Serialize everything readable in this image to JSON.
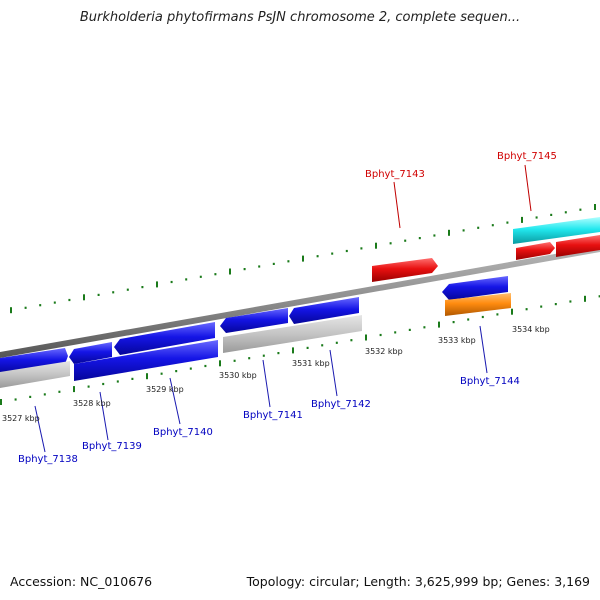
{
  "title": "Burkholderia phytofirmans PsJN chromosome 2, complete sequen...",
  "footer": {
    "accession": "Accession: NC_010676",
    "topology": "Topology: circular; Length: 3,625,999 bp; Genes: 3,169"
  },
  "colors": {
    "backbone": "#8c8c8c",
    "tick": "#1a7a1a",
    "forward_gene": "#1010e0",
    "reverse_gene": "#1010e0",
    "pseudo": "#c6c6c6",
    "red_gene": "#e81010",
    "cyan_gene": "#22e8ee",
    "orange_gene": "#ff8c10",
    "label_blue": "#0000c0",
    "label_red": "#d00000"
  },
  "kbp_labels": [
    "3527 kbp",
    "3528 kbp",
    "3529 kbp",
    "3530 kbp",
    "3531 kbp",
    "3532 kbp",
    "3533 kbp",
    "3534 kbp"
  ],
  "gene_labels": [
    {
      "text": "Bphyt_7138",
      "color": "blue"
    },
    {
      "text": "Bphyt_7139",
      "color": "blue"
    },
    {
      "text": "Bphyt_7140",
      "color": "blue"
    },
    {
      "text": "Bphyt_7141",
      "color": "blue"
    },
    {
      "text": "Bphyt_7142",
      "color": "blue"
    },
    {
      "text": "Bphyt_7143",
      "color": "red"
    },
    {
      "text": "Bphyt_7144",
      "color": "blue"
    },
    {
      "text": "Bphyt_7145",
      "color": "red"
    }
  ]
}
